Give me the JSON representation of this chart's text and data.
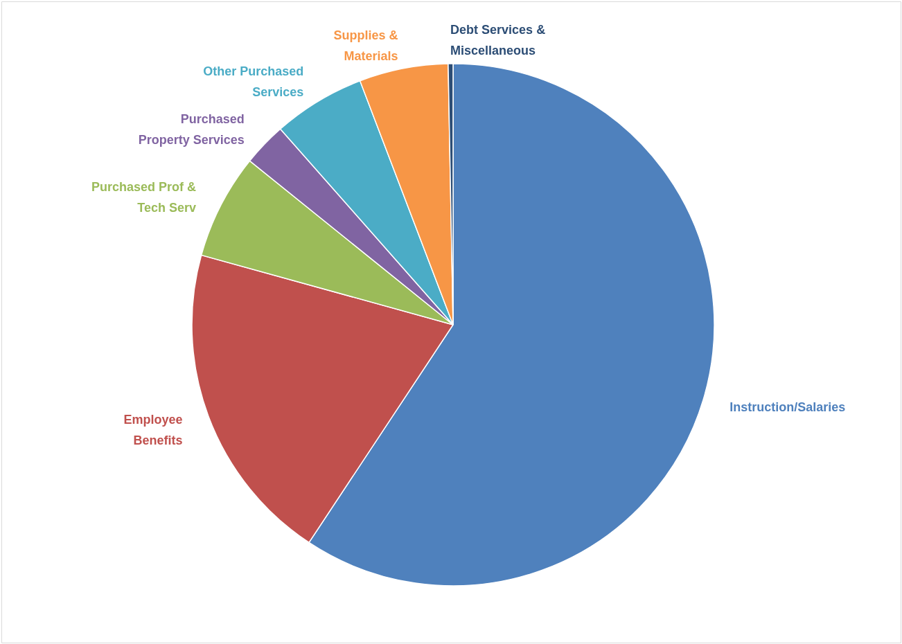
{
  "chart_data": {
    "type": "pie",
    "categories": [
      "Instruction/Salaries",
      "Employee Benefits",
      "Purchased Prof & Tech Serv",
      "Purchased Property Services",
      "Other Purchased Services",
      "Supplies & Materials",
      "Debt Services & Miscellaneous"
    ],
    "values": [
      59.3,
      20.0,
      6.5,
      2.7,
      5.7,
      5.5,
      0.3
    ],
    "colors": [
      "#4f81bd",
      "#c0504d",
      "#9bbb59",
      "#8064a2",
      "#4bacc6",
      "#f79646",
      "#2c4d75"
    ]
  }
}
